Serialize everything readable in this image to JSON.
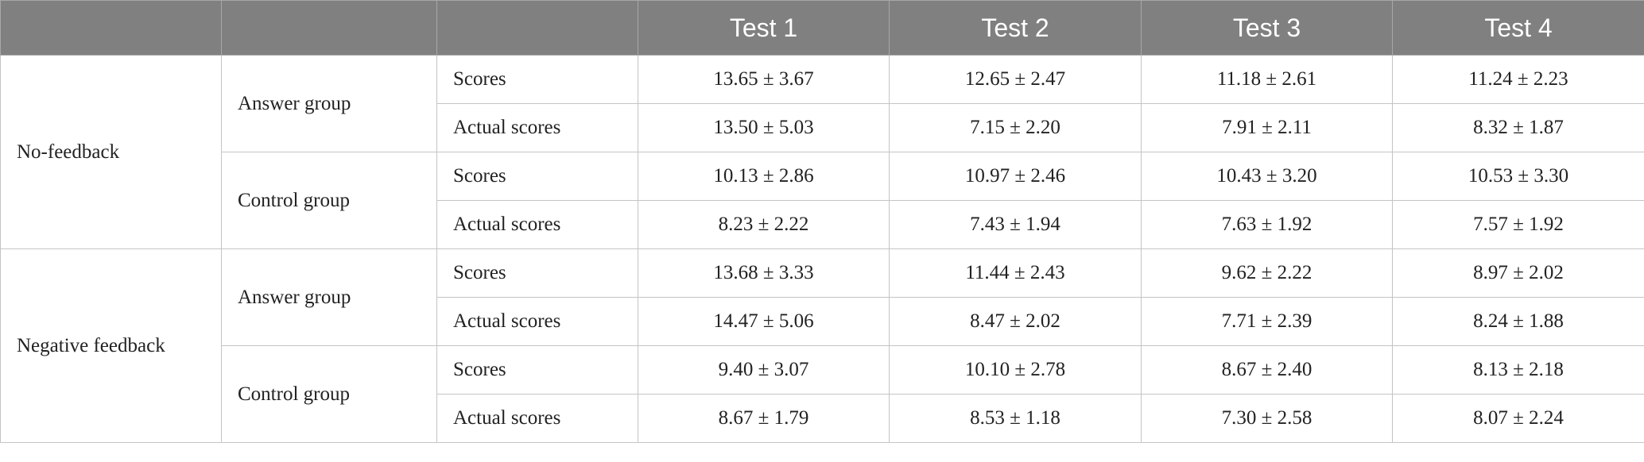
{
  "table": {
    "tests": [
      "Test 1",
      "Test 2",
      "Test 3",
      "Test 4"
    ],
    "groups": [
      {
        "label": "No-feedback",
        "subgroups": [
          {
            "label": "Answer group",
            "rows": [
              {
                "label": "Scores",
                "values": [
                  "13.65 ± 3.67",
                  "12.65 ± 2.47",
                  "11.18 ± 2.61",
                  "11.24 ± 2.23"
                ]
              },
              {
                "label": "Actual scores",
                "values": [
                  "13.50 ± 5.03",
                  "7.15 ± 2.20",
                  "7.91 ± 2.11",
                  "8.32 ± 1.87"
                ]
              }
            ]
          },
          {
            "label": "Control group",
            "rows": [
              {
                "label": "Scores",
                "values": [
                  "10.13 ± 2.86",
                  "10.97 ± 2.46",
                  "10.43 ± 3.20",
                  "10.53 ± 3.30"
                ]
              },
              {
                "label": "Actual scores",
                "values": [
                  "8.23 ± 2.22",
                  "7.43 ± 1.94",
                  "7.63 ± 1.92",
                  "7.57 ± 1.92"
                ]
              }
            ]
          }
        ]
      },
      {
        "label": "Negative feedback",
        "subgroups": [
          {
            "label": "Answer group",
            "rows": [
              {
                "label": "Scores",
                "values": [
                  "13.68 ± 3.33",
                  "11.44 ± 2.43",
                  "9.62 ± 2.22",
                  "8.97 ± 2.02"
                ]
              },
              {
                "label": "Actual scores",
                "values": [
                  "14.47 ± 5.06",
                  "8.47 ± 2.02",
                  "7.71 ± 2.39",
                  "8.24 ± 1.88"
                ]
              }
            ]
          },
          {
            "label": "Control group",
            "rows": [
              {
                "label": "Scores",
                "values": [
                  "9.40 ± 3.07",
                  "10.10 ± 2.78",
                  "8.67 ± 2.40",
                  "8.13 ± 2.18"
                ]
              },
              {
                "label": "Actual scores",
                "values": [
                  "8.67 ± 1.79",
                  "8.53 ± 1.18",
                  "7.30 ± 2.58",
                  "8.07 ± 2.24"
                ]
              }
            ]
          }
        ]
      }
    ]
  }
}
